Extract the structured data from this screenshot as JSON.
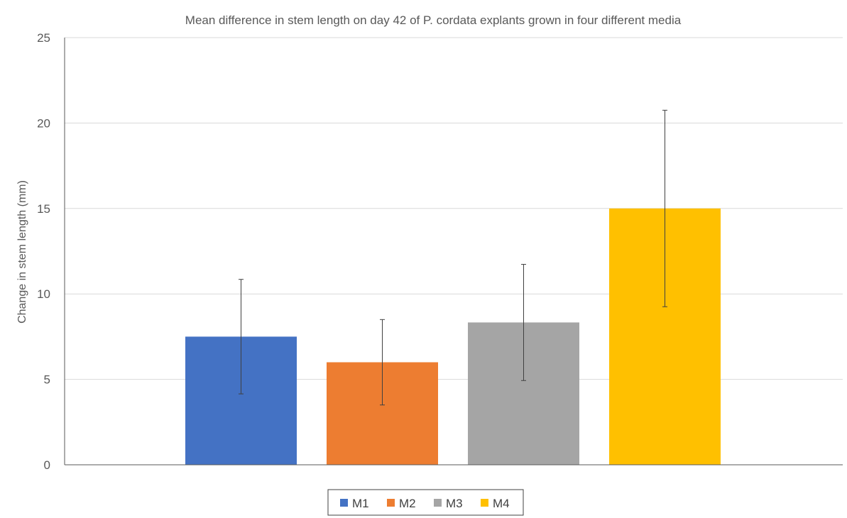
{
  "chart_data": {
    "type": "bar",
    "title": "Mean difference in stem length on day 42 of P. cordata explants grown in four different media",
    "xlabel": "",
    "ylabel": "Change in stem length (mm)",
    "ylim": [
      0,
      25
    ],
    "yticks": [
      "0",
      "5",
      "10",
      "15",
      "20",
      "25"
    ],
    "grid": true,
    "legend_position": "bottom",
    "series": [
      {
        "name": "M1",
        "value": 7.5,
        "error": 3.35,
        "color": "#4472C4"
      },
      {
        "name": "M2",
        "value": 6.0,
        "error": 2.5,
        "color": "#ED7D31"
      },
      {
        "name": "M3",
        "value": 8.33,
        "error": 3.4,
        "color": "#A5A5A5"
      },
      {
        "name": "M4",
        "value": 15.0,
        "error": 5.75,
        "color": "#FFC000"
      }
    ]
  }
}
